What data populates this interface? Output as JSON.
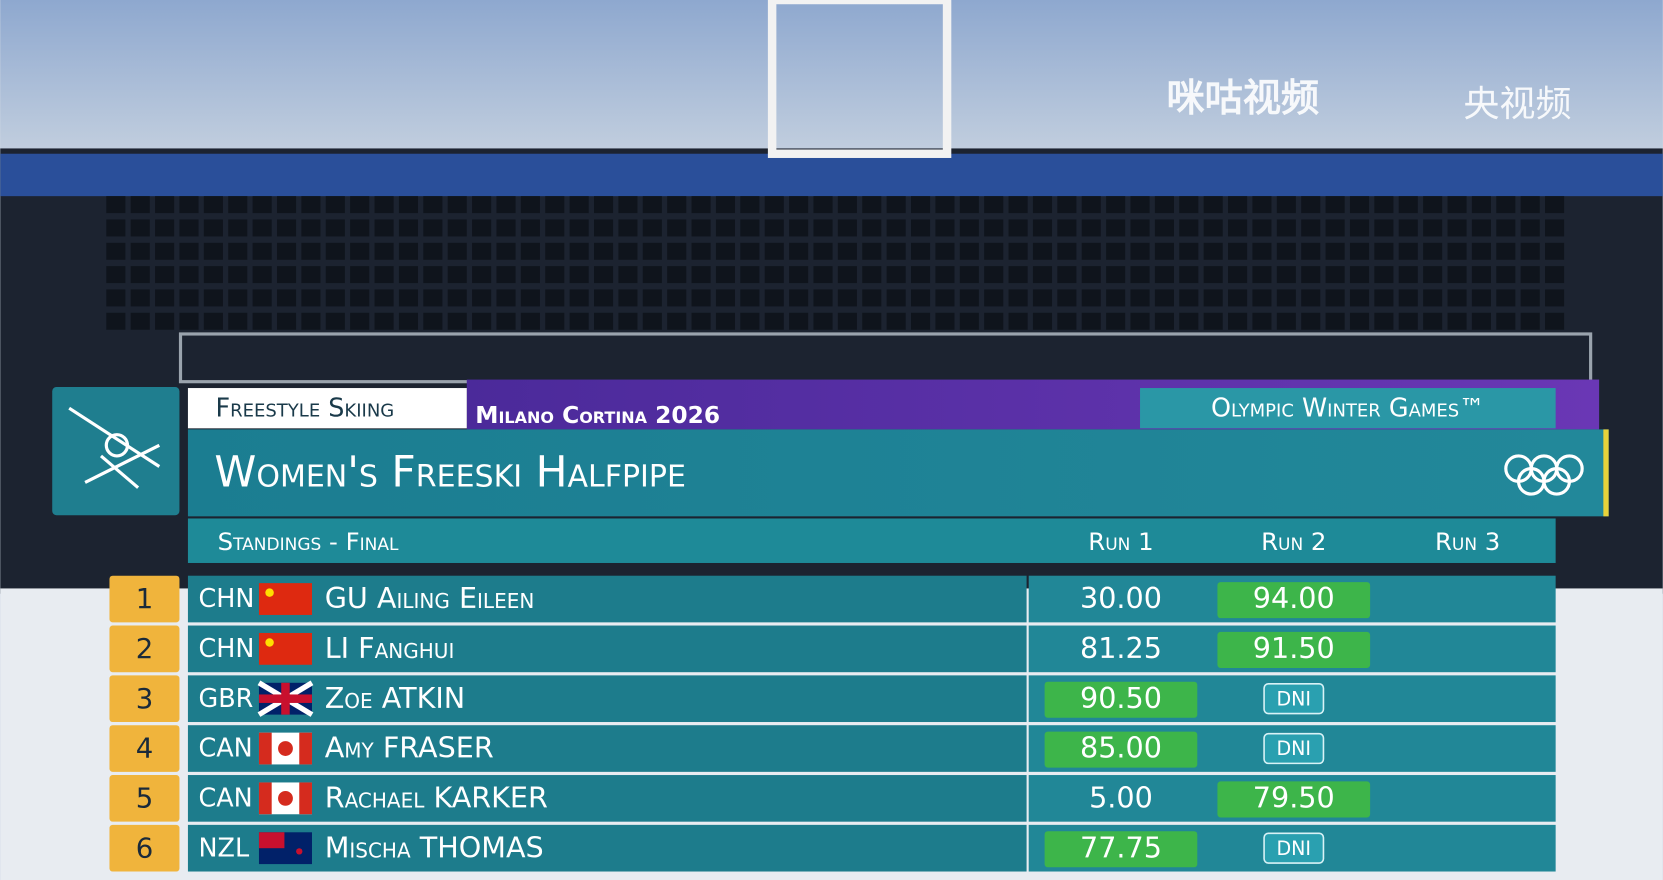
{
  "watermarks": [
    "咪咕视频",
    "央视频"
  ],
  "header": {
    "discipline": "Freestyle Skiing",
    "games": "Milano Cortina 2026",
    "event_brand": "Olympic Winter Games™",
    "title": "Women's Freeski Halfpipe",
    "subtitle": "Standings - Final",
    "columns": [
      "Run 1",
      "Run 2",
      "Run 3"
    ]
  },
  "table": {
    "rows": [
      [
        "1",
        "CHN",
        "GU Ailing Eileen",
        "30.00",
        "94.00"
      ],
      [
        "2",
        "CHN",
        "LI Fanghui",
        "81.25",
        "91.50"
      ],
      [
        "3",
        "GBR",
        "Zoe ATKIN",
        "90.50",
        "DNI"
      ],
      [
        "4",
        "CAN",
        "Amy FRASER",
        "85.00",
        "DNI"
      ],
      [
        "5",
        "CAN",
        "Rachael KARKER",
        "5.00",
        "79.50"
      ],
      [
        "6",
        "NZL",
        "Mischa THOMAS",
        "77.75",
        "DNI"
      ]
    ]
  }
}
